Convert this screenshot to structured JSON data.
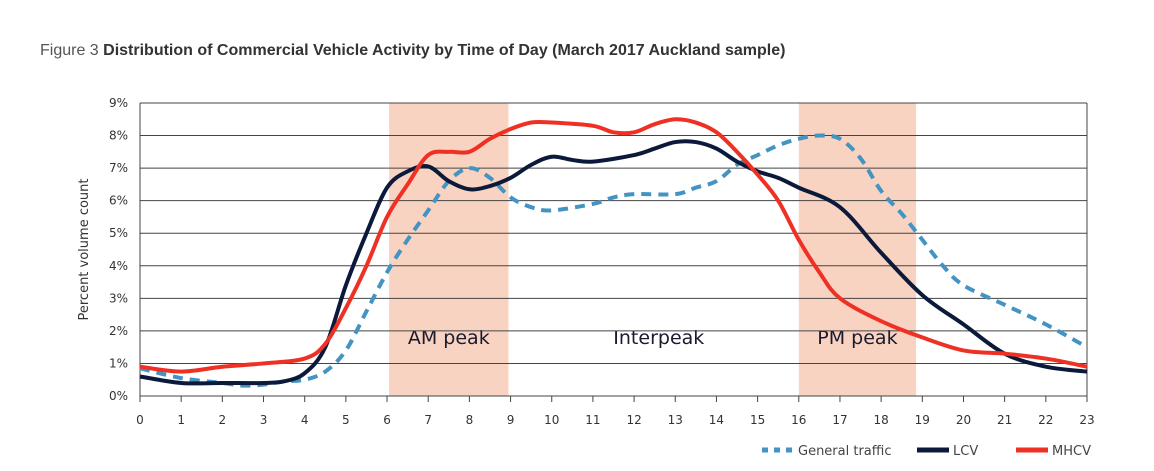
{
  "title": {
    "lead": "Figure 3",
    "main": "Distribution of Commercial Vehicle Activity by Time of Day (March 2017 Auckland sample)"
  },
  "chart_data": {
    "type": "line",
    "title": "Distribution of Commercial Vehicle Activity by Time of Day (March 2017 Auckland sample)",
    "xlabel": "",
    "ylabel": "Percent volume count",
    "xlim": [
      0,
      23
    ],
    "ylim": [
      0,
      9
    ],
    "x_ticks": [
      "0",
      "1",
      "2",
      "3",
      "4",
      "5",
      "6",
      "7",
      "8",
      "9",
      "10",
      "11",
      "12",
      "13",
      "14",
      "15",
      "16",
      "17",
      "18",
      "19",
      "20",
      "21",
      "22",
      "23"
    ],
    "y_ticks": [
      "0%",
      "1%",
      "2%",
      "3%",
      "4%",
      "5%",
      "6%",
      "7%",
      "8%",
      "9%"
    ],
    "grid": "horizontal",
    "legend": "bottom-right",
    "bands": [
      {
        "label": "AM peak",
        "from": 6.05,
        "to": 8.95,
        "color": "#f9d3c2"
      },
      {
        "label": "PM peak",
        "from": 16.0,
        "to": 18.85,
        "color": "#f9d3c2"
      }
    ],
    "annotations": [
      {
        "text": "Interpeak",
        "x": 12.6,
        "y": 1.6
      }
    ],
    "series": [
      {
        "name": "General traffic",
        "color": "#4393c3",
        "style": "dashed",
        "x": [
          0,
          1,
          2,
          2.5,
          3,
          3.5,
          4,
          4.5,
          5,
          5.5,
          6,
          6.5,
          7,
          7.5,
          8,
          8.5,
          9,
          9.5,
          10,
          11,
          11.5,
          12,
          13,
          13.5,
          14,
          14.5,
          15,
          15.5,
          16,
          16.5,
          17,
          17.5,
          18,
          18.5,
          19,
          19.5,
          20,
          21,
          22,
          23
        ],
        "y": [
          0.85,
          0.55,
          0.4,
          0.32,
          0.35,
          0.45,
          0.5,
          0.75,
          1.4,
          2.6,
          3.8,
          4.8,
          5.7,
          6.6,
          7.0,
          6.7,
          6.1,
          5.8,
          5.7,
          5.9,
          6.1,
          6.2,
          6.2,
          6.4,
          6.6,
          7.1,
          7.4,
          7.7,
          7.9,
          8.0,
          7.9,
          7.3,
          6.3,
          5.6,
          4.8,
          4.0,
          3.4,
          2.8,
          2.2,
          1.5
        ]
      },
      {
        "name": "LCV",
        "color": "#0b1a3a",
        "style": "solid",
        "x": [
          0,
          1,
          2,
          3,
          3.5,
          4,
          4.5,
          5,
          5.5,
          6,
          6.5,
          7,
          7.5,
          8,
          8.5,
          9,
          9.5,
          10,
          10.5,
          11,
          12,
          12.5,
          13,
          13.5,
          14,
          14.5,
          15,
          15.5,
          16,
          17,
          18,
          19,
          20,
          21,
          22,
          23
        ],
        "y": [
          0.6,
          0.4,
          0.4,
          0.4,
          0.45,
          0.7,
          1.5,
          3.4,
          5.0,
          6.4,
          6.9,
          7.05,
          6.6,
          6.35,
          6.45,
          6.7,
          7.1,
          7.35,
          7.25,
          7.2,
          7.4,
          7.6,
          7.8,
          7.8,
          7.6,
          7.2,
          6.9,
          6.7,
          6.4,
          5.8,
          4.4,
          3.1,
          2.2,
          1.3,
          0.9,
          0.75
        ]
      },
      {
        "name": "MHCV",
        "color": "#ee3124",
        "style": "solid",
        "x": [
          0,
          1,
          2,
          3,
          4,
          4.5,
          5,
          5.5,
          6,
          6.5,
          7,
          7.5,
          8,
          8.5,
          9,
          9.5,
          10,
          11,
          11.5,
          12,
          12.5,
          13,
          13.5,
          14,
          14.5,
          15,
          15.5,
          16,
          16.5,
          17,
          18,
          19,
          20,
          21,
          22,
          23
        ],
        "y": [
          0.9,
          0.75,
          0.9,
          1.0,
          1.15,
          1.6,
          2.7,
          4.0,
          5.5,
          6.5,
          7.4,
          7.5,
          7.5,
          7.9,
          8.2,
          8.4,
          8.4,
          8.3,
          8.1,
          8.1,
          8.35,
          8.5,
          8.4,
          8.1,
          7.5,
          6.8,
          6.0,
          4.8,
          3.8,
          3.0,
          2.3,
          1.8,
          1.4,
          1.3,
          1.15,
          0.9
        ]
      }
    ]
  }
}
